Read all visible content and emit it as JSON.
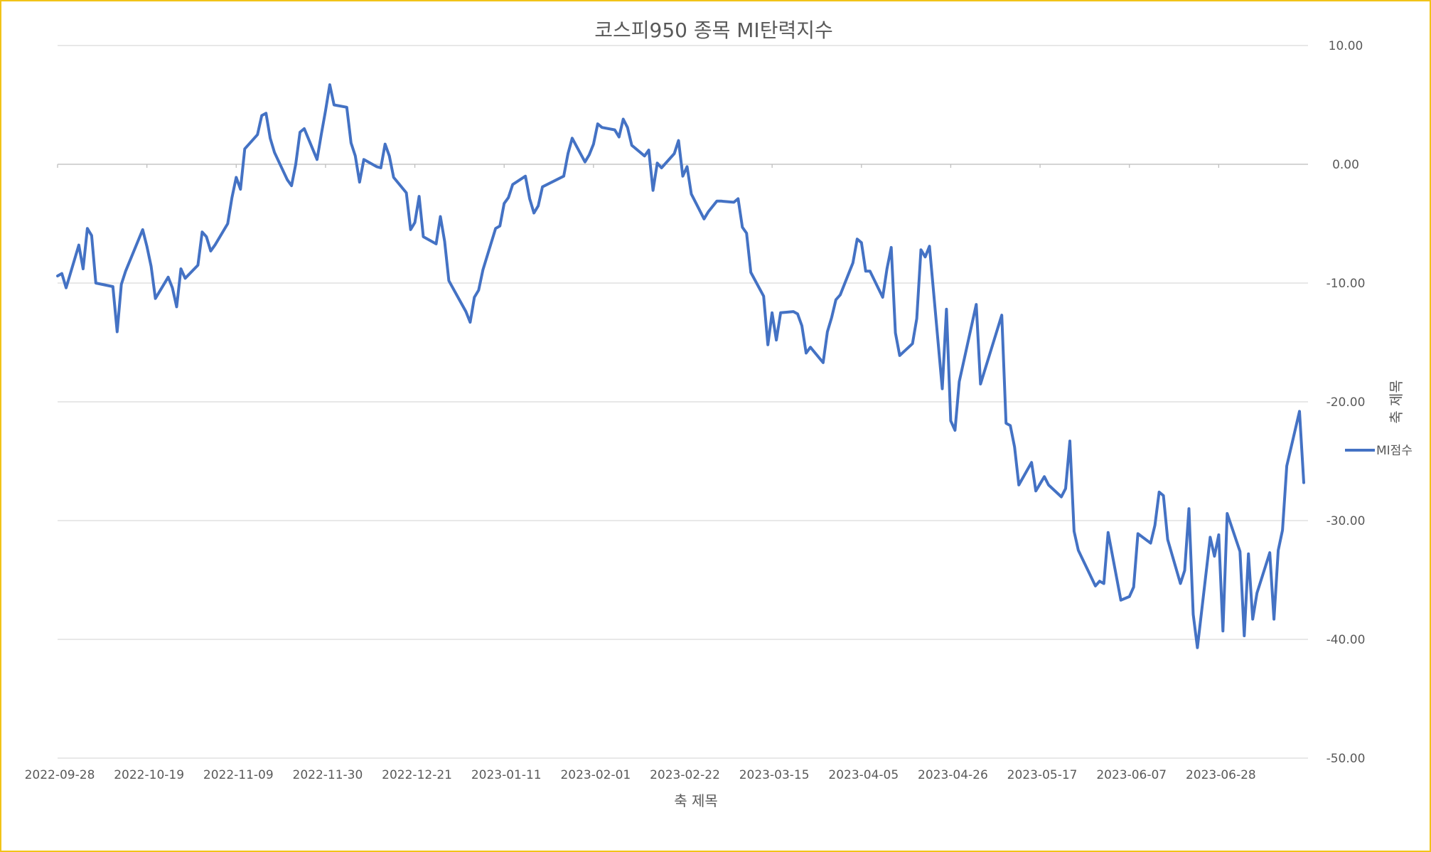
{
  "chart_data": {
    "type": "line",
    "title": "코스피950 종목 MI탄력지수",
    "xlabel": "축 제목",
    "ylabel": "축 제목",
    "y_axis_side": "right",
    "ylim": [
      -50,
      10
    ],
    "y_step": 10,
    "y_ticks": [
      "10.00",
      "0.00",
      "-10.00",
      "-20.00",
      "-30.00",
      "-40.00",
      "-50.00"
    ],
    "x_ticks": [
      "2022-09-28",
      "2022-10-19",
      "2022-11-09",
      "2022-11-30",
      "2022-12-21",
      "2023-01-11",
      "2023-02-01",
      "2023-02-22",
      "2023-03-15",
      "2023-04-05",
      "2023-04-26",
      "2023-05-17",
      "2023-06-07",
      "2023-06-28"
    ],
    "x_range": [
      "2022-09-28",
      "2023-07-19"
    ],
    "grid": true,
    "legend": "right",
    "series_color": "#4472c4",
    "series": [
      {
        "name": "MI점수",
        "points": [
          [
            "2022-09-28",
            -9.4
          ],
          [
            "2022-09-29",
            -9.2
          ],
          [
            "2022-09-30",
            -10.4
          ],
          [
            "2022-10-03",
            -6.8
          ],
          [
            "2022-10-04",
            -8.8
          ],
          [
            "2022-10-05",
            -5.4
          ],
          [
            "2022-10-06",
            -6.0
          ],
          [
            "2022-10-07",
            -10.0
          ],
          [
            "2022-10-11",
            -10.3
          ],
          [
            "2022-10-12",
            -14.1
          ],
          [
            "2022-10-13",
            -10.1
          ],
          [
            "2022-10-14",
            -9.0
          ],
          [
            "2022-10-18",
            -5.5
          ],
          [
            "2022-10-19",
            -6.9
          ],
          [
            "2022-10-20",
            -8.6
          ],
          [
            "2022-10-21",
            -11.3
          ],
          [
            "2022-10-24",
            -9.5
          ],
          [
            "2022-10-25",
            -10.4
          ],
          [
            "2022-10-26",
            -12.0
          ],
          [
            "2022-10-27",
            -8.8
          ],
          [
            "2022-10-28",
            -9.6
          ],
          [
            "2022-10-31",
            -8.5
          ],
          [
            "2022-11-01",
            -5.7
          ],
          [
            "2022-11-02",
            -6.1
          ],
          [
            "2022-11-03",
            -7.3
          ],
          [
            "2022-11-04",
            -6.8
          ],
          [
            "2022-11-07",
            -5.0
          ],
          [
            "2022-11-08",
            -2.8
          ],
          [
            "2022-11-09",
            -1.1
          ],
          [
            "2022-11-10",
            -2.1
          ],
          [
            "2022-11-11",
            1.3
          ],
          [
            "2022-11-14",
            2.5
          ],
          [
            "2022-11-15",
            4.1
          ],
          [
            "2022-11-16",
            4.3
          ],
          [
            "2022-11-17",
            2.2
          ],
          [
            "2022-11-18",
            1.0
          ],
          [
            "2022-11-21",
            -1.3
          ],
          [
            "2022-11-22",
            -1.8
          ],
          [
            "2022-11-23",
            0.0
          ],
          [
            "2022-11-24",
            2.7
          ],
          [
            "2022-11-25",
            3.0
          ],
          [
            "2022-11-28",
            0.4
          ],
          [
            "2022-11-29",
            2.5
          ],
          [
            "2022-11-30",
            4.5
          ],
          [
            "2022-12-01",
            6.7
          ],
          [
            "2022-12-02",
            5.0
          ],
          [
            "2022-12-05",
            4.8
          ],
          [
            "2022-12-06",
            1.8
          ],
          [
            "2022-12-07",
            0.7
          ],
          [
            "2022-12-08",
            -1.5
          ],
          [
            "2022-12-09",
            0.4
          ],
          [
            "2022-12-12",
            -0.2
          ],
          [
            "2022-12-13",
            -0.3
          ],
          [
            "2022-12-14",
            1.7
          ],
          [
            "2022-12-15",
            0.7
          ],
          [
            "2022-12-16",
            -1.1
          ],
          [
            "2022-12-19",
            -2.4
          ],
          [
            "2022-12-20",
            -5.5
          ],
          [
            "2022-12-21",
            -4.9
          ],
          [
            "2022-12-22",
            -2.7
          ],
          [
            "2022-12-23",
            -6.1
          ],
          [
            "2022-12-26",
            -6.7
          ],
          [
            "2022-12-27",
            -4.4
          ],
          [
            "2022-12-28",
            -6.5
          ],
          [
            "2022-12-29",
            -9.8
          ],
          [
            "2023-01-02",
            -12.4
          ],
          [
            "2023-01-03",
            -13.3
          ],
          [
            "2023-01-04",
            -11.2
          ],
          [
            "2023-01-05",
            -10.6
          ],
          [
            "2023-01-06",
            -8.9
          ],
          [
            "2023-01-09",
            -5.4
          ],
          [
            "2023-01-10",
            -5.2
          ],
          [
            "2023-01-11",
            -3.3
          ],
          [
            "2023-01-12",
            -2.8
          ],
          [
            "2023-01-13",
            -1.7
          ],
          [
            "2023-01-16",
            -1.0
          ],
          [
            "2023-01-17",
            -2.9
          ],
          [
            "2023-01-18",
            -4.1
          ],
          [
            "2023-01-19",
            -3.5
          ],
          [
            "2023-01-20",
            -1.9
          ],
          [
            "2023-01-25",
            -1.0
          ],
          [
            "2023-01-26",
            0.9
          ],
          [
            "2023-01-27",
            2.2
          ],
          [
            "2023-01-30",
            0.2
          ],
          [
            "2023-01-31",
            0.8
          ],
          [
            "2023-02-01",
            1.7
          ],
          [
            "2023-02-02",
            3.4
          ],
          [
            "2023-02-03",
            3.1
          ],
          [
            "2023-02-06",
            2.9
          ],
          [
            "2023-02-07",
            2.3
          ],
          [
            "2023-02-08",
            3.8
          ],
          [
            "2023-02-09",
            3.1
          ],
          [
            "2023-02-10",
            1.6
          ],
          [
            "2023-02-13",
            0.7
          ],
          [
            "2023-02-14",
            1.2
          ],
          [
            "2023-02-15",
            -2.2
          ],
          [
            "2023-02-16",
            0.1
          ],
          [
            "2023-02-17",
            -0.3
          ],
          [
            "2023-02-20",
            0.9
          ],
          [
            "2023-02-21",
            2.0
          ],
          [
            "2023-02-22",
            -1.0
          ],
          [
            "2023-02-23",
            -0.2
          ],
          [
            "2023-02-24",
            -2.5
          ],
          [
            "2023-02-27",
            -4.6
          ],
          [
            "2023-02-28",
            -4.0
          ],
          [
            "2023-03-02",
            -3.1
          ],
          [
            "2023-03-03",
            -3.1
          ],
          [
            "2023-03-06",
            -3.2
          ],
          [
            "2023-03-07",
            -2.9
          ],
          [
            "2023-03-08",
            -5.3
          ],
          [
            "2023-03-09",
            -5.8
          ],
          [
            "2023-03-10",
            -9.1
          ],
          [
            "2023-03-13",
            -11.1
          ],
          [
            "2023-03-14",
            -15.2
          ],
          [
            "2023-03-15",
            -12.5
          ],
          [
            "2023-03-16",
            -14.8
          ],
          [
            "2023-03-17",
            -12.5
          ],
          [
            "2023-03-20",
            -12.4
          ],
          [
            "2023-03-21",
            -12.6
          ],
          [
            "2023-03-22",
            -13.6
          ],
          [
            "2023-03-23",
            -15.9
          ],
          [
            "2023-03-24",
            -15.4
          ],
          [
            "2023-03-27",
            -16.7
          ],
          [
            "2023-03-28",
            -14.1
          ],
          [
            "2023-03-29",
            -12.9
          ],
          [
            "2023-03-30",
            -11.4
          ],
          [
            "2023-03-31",
            -11.0
          ],
          [
            "2023-04-03",
            -8.3
          ],
          [
            "2023-04-04",
            -6.3
          ],
          [
            "2023-04-05",
            -6.6
          ],
          [
            "2023-04-06",
            -9.0
          ],
          [
            "2023-04-07",
            -9.0
          ],
          [
            "2023-04-10",
            -11.2
          ],
          [
            "2023-04-11",
            -8.8
          ],
          [
            "2023-04-12",
            -7.0
          ],
          [
            "2023-04-13",
            -14.2
          ],
          [
            "2023-04-14",
            -16.1
          ],
          [
            "2023-04-17",
            -15.1
          ],
          [
            "2023-04-18",
            -13.0
          ],
          [
            "2023-04-19",
            -7.2
          ],
          [
            "2023-04-20",
            -7.8
          ],
          [
            "2023-04-21",
            -6.9
          ],
          [
            "2023-04-24",
            -18.9
          ],
          [
            "2023-04-25",
            -12.2
          ],
          [
            "2023-04-26",
            -21.6
          ],
          [
            "2023-04-27",
            -22.4
          ],
          [
            "2023-04-28",
            -18.3
          ],
          [
            "2023-05-02",
            -11.8
          ],
          [
            "2023-05-03",
            -18.5
          ],
          [
            "2023-05-08",
            -12.7
          ],
          [
            "2023-05-09",
            -21.8
          ],
          [
            "2023-05-10",
            -22.0
          ],
          [
            "2023-05-11",
            -23.8
          ],
          [
            "2023-05-12",
            -27.0
          ],
          [
            "2023-05-15",
            -25.1
          ],
          [
            "2023-05-16",
            -27.5
          ],
          [
            "2023-05-18",
            -26.3
          ],
          [
            "2023-05-19",
            -27.0
          ],
          [
            "2023-05-22",
            -28.0
          ],
          [
            "2023-05-23",
            -27.3
          ],
          [
            "2023-05-24",
            -23.3
          ],
          [
            "2023-05-25",
            -30.9
          ],
          [
            "2023-05-26",
            -32.5
          ],
          [
            "2023-05-30",
            -35.5
          ],
          [
            "2023-05-31",
            -35.1
          ],
          [
            "2023-06-01",
            -35.3
          ],
          [
            "2023-06-02",
            -31.0
          ],
          [
            "2023-06-05",
            -36.7
          ],
          [
            "2023-06-07",
            -36.4
          ],
          [
            "2023-06-08",
            -35.6
          ],
          [
            "2023-06-09",
            -31.1
          ],
          [
            "2023-06-12",
            -31.9
          ],
          [
            "2023-06-13",
            -30.4
          ],
          [
            "2023-06-14",
            -27.6
          ],
          [
            "2023-06-15",
            -27.9
          ],
          [
            "2023-06-16",
            -31.6
          ],
          [
            "2023-06-19",
            -35.3
          ],
          [
            "2023-06-20",
            -34.2
          ],
          [
            "2023-06-21",
            -29.0
          ],
          [
            "2023-06-22",
            -37.9
          ],
          [
            "2023-06-23",
            -40.7
          ],
          [
            "2023-06-26",
            -31.4
          ],
          [
            "2023-06-27",
            -33.0
          ],
          [
            "2023-06-28",
            -31.2
          ],
          [
            "2023-06-29",
            -39.3
          ],
          [
            "2023-06-30",
            -29.4
          ],
          [
            "2023-07-03",
            -32.6
          ],
          [
            "2023-07-04",
            -39.7
          ],
          [
            "2023-07-05",
            -32.8
          ],
          [
            "2023-07-06",
            -38.3
          ],
          [
            "2023-07-07",
            -36.1
          ],
          [
            "2023-07-10",
            -32.7
          ],
          [
            "2023-07-11",
            -38.3
          ],
          [
            "2023-07-12",
            -32.5
          ],
          [
            "2023-07-13",
            -30.8
          ],
          [
            "2023-07-14",
            -25.4
          ],
          [
            "2023-07-17",
            -20.8
          ],
          [
            "2023-07-18",
            -26.8
          ]
        ]
      }
    ]
  }
}
